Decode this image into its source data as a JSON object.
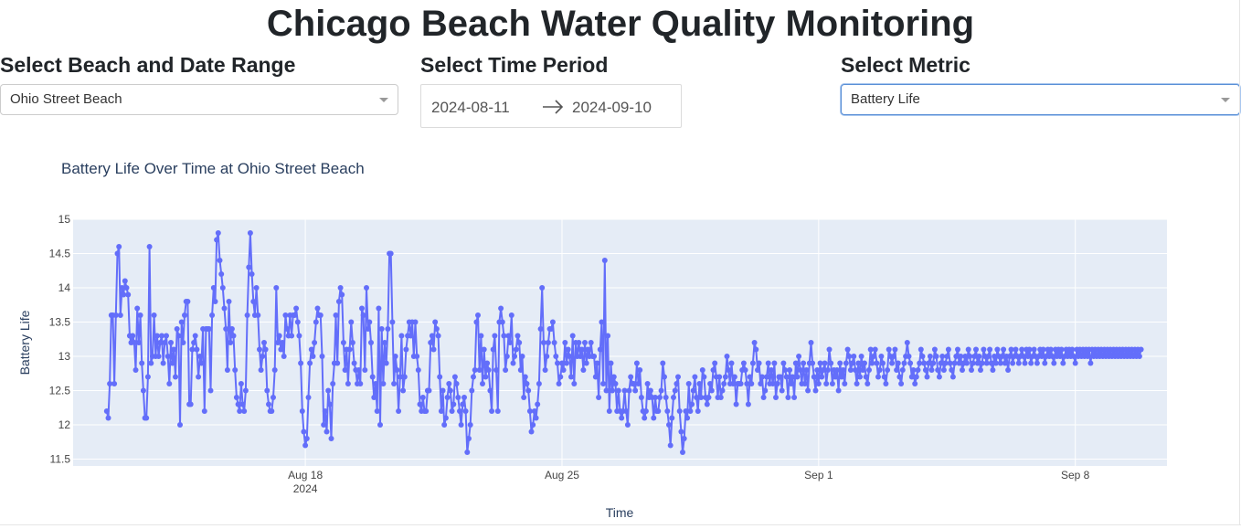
{
  "page": {
    "title": "Chicago Beach Water Quality Monitoring"
  },
  "controls": {
    "beach": {
      "label": "Select Beach and Date Range",
      "value": "Ohio Street Beach"
    },
    "period": {
      "label": "Select Time Period",
      "start": "2024-08-11",
      "end": "2024-09-10"
    },
    "metric": {
      "label": "Select Metric",
      "value": "Battery Life"
    }
  },
  "colors": {
    "series": "#636efa",
    "plot_bg": "#e5ecf6",
    "grid": "#ffffff"
  },
  "chart_data": {
    "type": "line",
    "mode": "lines+markers",
    "title": "Battery Life Over Time at Ohio Street Beach",
    "xlabel": "Time",
    "ylabel": "Battery Life",
    "ylim": [
      11.4,
      15.0
    ],
    "y_ticks": [
      11.5,
      12,
      12.5,
      13,
      13.5,
      14,
      14.5,
      15
    ],
    "x_range": [
      "2024-08-11T16:00",
      "2024-09-10T12:00"
    ],
    "x_ticks": [
      {
        "date": "2024-08-18",
        "label": "Aug 18",
        "sublabel": "2024"
      },
      {
        "date": "2024-08-25",
        "label": "Aug 25",
        "sublabel": ""
      },
      {
        "date": "2024-09-01",
        "label": "Sep 1",
        "sublabel": ""
      },
      {
        "date": "2024-09-08",
        "label": "Sep 8",
        "sublabel": ""
      }
    ],
    "grid": true,
    "x_start": "2024-08-12T14:00",
    "x_step_hours": 1,
    "series": [
      {
        "values": [
          12.2,
          12.1,
          12.6,
          13.6,
          13.6,
          12.6,
          13.6,
          14.5,
          14.6,
          13.6,
          14.0,
          13.9,
          14.1,
          14.0,
          13.9,
          13.3,
          13.2,
          13.3,
          13.2,
          12.8,
          13.7,
          13.2,
          13.6,
          12.9,
          12.5,
          12.1,
          12.1,
          12.7,
          14.6,
          12.9,
          13.0,
          13.6,
          13.0,
          13.3,
          13.0,
          13.2,
          13.3,
          12.9,
          13.2,
          13.3,
          13.0,
          12.6,
          13.2,
          12.9,
          13.1,
          12.7,
          13.4,
          13.3,
          12.0,
          13.5,
          13.2,
          13.6,
          13.8,
          13.8,
          12.3,
          12.3,
          13.1,
          13.2,
          13.3,
          13.1,
          12.7,
          13.0,
          12.9,
          13.4,
          12.2,
          13.4,
          13.4,
          13.4,
          12.5,
          13.6,
          14.0,
          13.8,
          14.7,
          14.8,
          14.4,
          14.2,
          14.0,
          13.7,
          13.4,
          12.8,
          13.8,
          13.2,
          13.4,
          13.3,
          12.8,
          12.4,
          12.3,
          12.2,
          12.6,
          12.3,
          12.2,
          12.5,
          13.6,
          14.3,
          14.8,
          14.2,
          13.8,
          13.6,
          14.0,
          13.6,
          13.1,
          12.8,
          13.0,
          13.2,
          13.1,
          12.5,
          12.3,
          12.2,
          12.2,
          12.4,
          12.8,
          14.0,
          13.2,
          13.3,
          13.1,
          13.2,
          13.0,
          13.6,
          13.4,
          13.3,
          13.6,
          13.3,
          13.6,
          13.6,
          13.7,
          13.5,
          13.3,
          12.9,
          12.2,
          11.9,
          11.7,
          11.8,
          12.4,
          12.9,
          13.1,
          13.0,
          13.2,
          13.5,
          13.7,
          13.6,
          13.6,
          13.0,
          12.0,
          12.2,
          11.9,
          12.5,
          12.3,
          11.8,
          12.6,
          12.9,
          13.6,
          12.9,
          13.8,
          14.0,
          13.9,
          13.2,
          12.8,
          13.1,
          12.6,
          13.1,
          13.5,
          13.2,
          12.9,
          12.8,
          12.6,
          12.8,
          12.6,
          13.7,
          13.6,
          12.8,
          14.0,
          13.4,
          13.5,
          13.2,
          12.7,
          12.4,
          12.6,
          12.2,
          13.7,
          12.0,
          13.4,
          12.6,
          13.2,
          12.9,
          13.4,
          14.5,
          14.5,
          13.5,
          12.6,
          13.0,
          12.8,
          12.2,
          12.7,
          13.3,
          12.5,
          12.7,
          13.1,
          13.3,
          13.5,
          13.3,
          13.5,
          13.0,
          13.5,
          13.0,
          12.8,
          12.3,
          12.2,
          12.4,
          12.2,
          12.2,
          12.5,
          12.5,
          13.2,
          13.3,
          13.1,
          13.5,
          13.4,
          13.3,
          12.7,
          12.2,
          12.5,
          12.0,
          12.1,
          12.4,
          12.6,
          12.5,
          12.2,
          12.3,
          12.7,
          12.6,
          12.4,
          12.2,
          12.0,
          12.3,
          12.4,
          12.2,
          11.6,
          11.8,
          12.0,
          12.5,
          12.7,
          12.8,
          13.5,
          13.6,
          12.8,
          13.3,
          12.6,
          13.1,
          12.7,
          12.9,
          12.8,
          12.5,
          12.2,
          13.1,
          13.3,
          12.8,
          12.2,
          13.5,
          13.7,
          13.5,
          13.3,
          12.8,
          13.0,
          13.3,
          13.2,
          13.6,
          12.9,
          13.0,
          13.1,
          13.3,
          13.2,
          12.8,
          13.0,
          12.4,
          12.7,
          12.6,
          12.5,
          12.2,
          11.9,
          12.0,
          12.2,
          12.1,
          12.3,
          12.6,
          13.4,
          14.0,
          13.2,
          12.8,
          13.0,
          13.2,
          13.4,
          13.4,
          13.5,
          13.2,
          13.0,
          12.9,
          12.6,
          12.7,
          12.9,
          12.8,
          13.2,
          12.9,
          13.1,
          13.0,
          12.7,
          13.3,
          12.6,
          13.2,
          13.0,
          13.2,
          13.0,
          13.1,
          12.8,
          13.2,
          12.9,
          13.1,
          13.0,
          13.2,
          13.0,
          13.0,
          12.7,
          12.9,
          12.4,
          13.1,
          13.5,
          12.6,
          14.4,
          12.5,
          13.3,
          12.2,
          12.9,
          12.5,
          12.7,
          12.6,
          12.2,
          12.5,
          12.2,
          12.1,
          12.2,
          12.5,
          12.2,
          12.0,
          12.5,
          12.7,
          12.6,
          12.6,
          12.5,
          12.9,
          12.6,
          12.8,
          12.4,
          12.2,
          12.1,
          12.2,
          12.6,
          12.4,
          12.5,
          12.4,
          12.1,
          12.4,
          12.2,
          12.2,
          12.4,
          12.5,
          12.9,
          12.7,
          12.4,
          12.2,
          12.0,
          11.7,
          12.1,
          12.4,
          12.5,
          12.6,
          12.7,
          12.2,
          11.9,
          11.6,
          11.8,
          12.2,
          12.1,
          12.6,
          12.2,
          12.3,
          12.5,
          12.7,
          12.4,
          12.2,
          12.6,
          12.4,
          12.8,
          12.7,
          12.4,
          12.3,
          12.4,
          12.6,
          12.5,
          12.8,
          12.9,
          12.7,
          12.4,
          12.7,
          12.4,
          12.5,
          12.6,
          12.7,
          13.0,
          12.8,
          12.6,
          12.9,
          12.6,
          12.7,
          12.3,
          12.6,
          12.6,
          12.6,
          12.8,
          12.9,
          12.8,
          12.6,
          12.3,
          12.7,
          12.6,
          12.9,
          13.2,
          13.1,
          12.8,
          12.9,
          12.6,
          12.7,
          12.4,
          12.5,
          12.7,
          12.9,
          12.6,
          12.8,
          12.6,
          12.9,
          12.4,
          12.6,
          12.7,
          12.7,
          12.5,
          12.9,
          12.8,
          12.7,
          12.4,
          12.8,
          12.6,
          12.7,
          12.4,
          12.9,
          12.7,
          13.0,
          12.8,
          12.6,
          12.9,
          12.6,
          12.8,
          12.5,
          12.9,
          13.2,
          12.9,
          12.7,
          12.5,
          12.8,
          12.6,
          12.9,
          12.7,
          12.8,
          12.9,
          12.6,
          12.8,
          13.1,
          12.9,
          12.6,
          12.8,
          12.7,
          12.8,
          12.5,
          12.9,
          12.7,
          12.8,
          12.6,
          12.9,
          13.1,
          13.0,
          12.8,
          12.9,
          13.0,
          12.8,
          12.6,
          12.9,
          12.7,
          13.0,
          12.8,
          12.9,
          12.7,
          12.6,
          12.8,
          13.1,
          12.9,
          13.0,
          13.1,
          12.9,
          12.7,
          12.8,
          13.0,
          12.9,
          12.7,
          12.6,
          12.8,
          13.1,
          13.0,
          12.9,
          13.0,
          13.1,
          12.8,
          12.9,
          12.7,
          12.6,
          12.8,
          12.9,
          13.0,
          13.2,
          13.0,
          12.9,
          12.7,
          12.8,
          12.6,
          12.7,
          12.8,
          12.9,
          13.1,
          13.0,
          12.9,
          12.8,
          12.7,
          12.9,
          13.0,
          12.8,
          12.9,
          13.1,
          13.0,
          12.8,
          12.7,
          12.9,
          13.0,
          12.8,
          12.9,
          13.0,
          13.1,
          12.9,
          12.8,
          12.7,
          12.9,
          13.0,
          13.1,
          12.9,
          13.0,
          12.8,
          12.9,
          13.0,
          12.9,
          13.1,
          13.0,
          12.8,
          12.9,
          13.0,
          13.1,
          12.9,
          13.0,
          12.8,
          12.9,
          13.1,
          13.0,
          12.9,
          13.0,
          13.1,
          12.9,
          12.8,
          13.0,
          12.9,
          13.1,
          13.0,
          12.9,
          13.0,
          13.1,
          12.9,
          13.0,
          12.8,
          13.0,
          13.1,
          12.9,
          13.0,
          13.1,
          13.0,
          12.9,
          13.0,
          13.1,
          13.0,
          12.9,
          13.1,
          13.0,
          13.1,
          12.9,
          13.0,
          13.1,
          13.0,
          12.9,
          13.0,
          13.1,
          13.0,
          13.1,
          12.9,
          13.0,
          13.1,
          13.0,
          13.1,
          13.0,
          12.9,
          13.1,
          13.0,
          13.1,
          13.0,
          13.1,
          12.9,
          13.0,
          13.1,
          13.0,
          13.1,
          13.0,
          13.1,
          13.0,
          12.9,
          13.1,
          13.0,
          13.1,
          13.0,
          13.1,
          13.0,
          13.1,
          13.0,
          13.1,
          12.9,
          13.1,
          13.0,
          13.1,
          13.0,
          13.1,
          13.0,
          13.1,
          13.0,
          13.1,
          13.0,
          13.1,
          13.0,
          13.1,
          13.0,
          13.1,
          13.0,
          13.1,
          13.0,
          13.1,
          13.0,
          13.1,
          13.0,
          13.1,
          13.0,
          13.1,
          13.0,
          13.1,
          13.0,
          13.1,
          13.0,
          13.1,
          13.0,
          13.1
        ]
      }
    ]
  }
}
